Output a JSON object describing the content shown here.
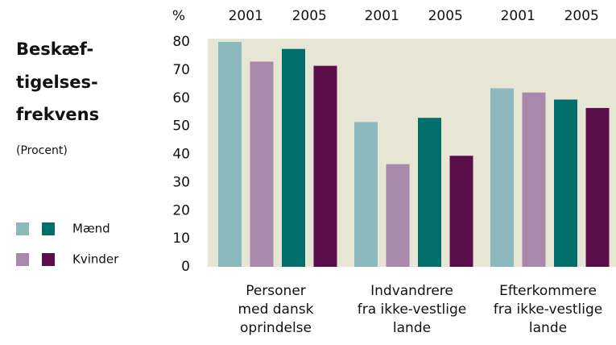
{
  "chart_data": {
    "type": "grouped-bar",
    "title_lines": [
      "Beskæf-",
      "tigelses-",
      "frekvens"
    ],
    "subtitle": "(Procent)",
    "y_unit": "%",
    "years": [
      "2001",
      "2005"
    ],
    "categories": [
      [
        "Personer",
        "med dansk",
        "oprindelse"
      ],
      [
        "Indvandrere",
        "fra ikke-vestlige",
        "lande"
      ],
      [
        "Efterkommere",
        "fra ikke-vestlige",
        "lande"
      ]
    ],
    "series": [
      {
        "name": "Mænd",
        "colors": [
          "#8cb9bd",
          "#006f6b"
        ],
        "values": [
          [
            80,
            51.5,
            63.5
          ],
          [
            77.5,
            53,
            59.5
          ]
        ]
      },
      {
        "name": "Kvinder",
        "colors": [
          "#a888ab",
          "#5a0f4a"
        ],
        "values": [
          [
            73,
            36.5,
            62
          ],
          [
            71.5,
            39.5,
            56.5
          ]
        ]
      }
    ],
    "ylim": [
      0,
      80
    ],
    "yticks": [
      0,
      10,
      20,
      30,
      40,
      50,
      60,
      70,
      80
    ],
    "background": "#e7e5d3"
  }
}
